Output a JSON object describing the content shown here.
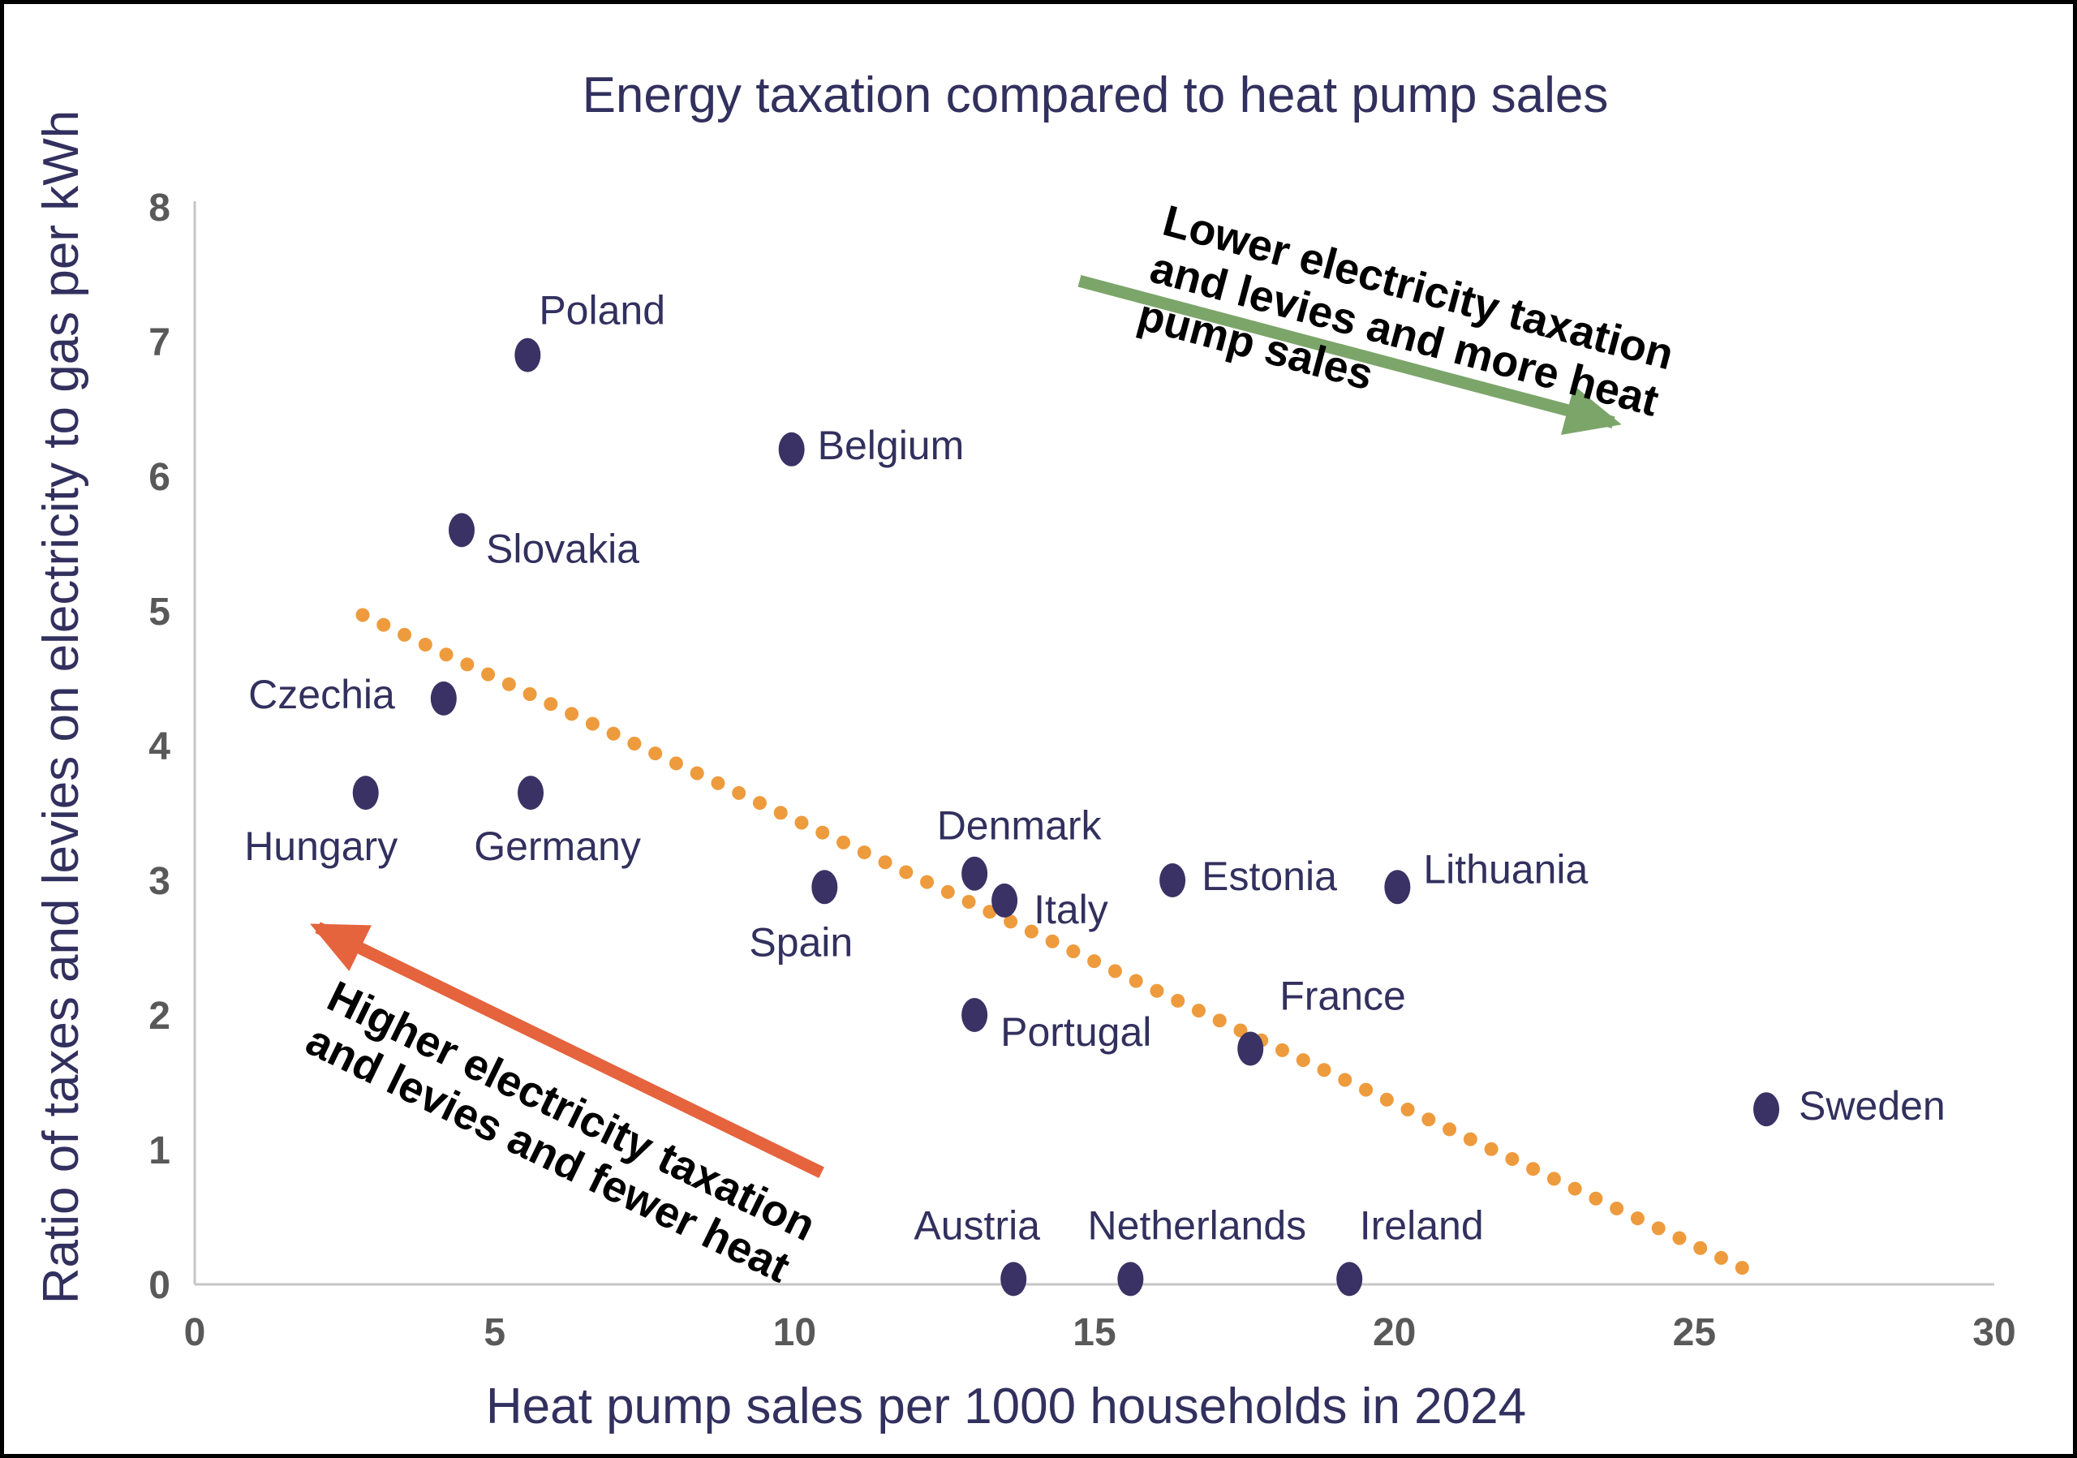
{
  "title": "Energy taxation compared to heat pump sales",
  "colors": {
    "background": "#FFFFFF",
    "border": "#000000",
    "navy": "#32305E",
    "dot": "#3A3264",
    "orange": "#EE9B3D",
    "green": "#7CA56A",
    "red": "#E5633D",
    "tick": "#595959",
    "axis_line": "#C6C6C6",
    "annotation": "#000000"
  },
  "chart_data": {
    "type": "scatter",
    "title": "Energy taxation compared to heat pump sales",
    "xlabel": "Heat pump sales per 1000 households in 2024",
    "ylabel": "Ratio of taxes and levies on electricity to gas per kWh",
    "xlim": [
      0,
      30
    ],
    "ylim": [
      0,
      8
    ],
    "x_ticks": [
      0,
      5,
      10,
      15,
      20,
      25,
      30
    ],
    "y_ticks": [
      0,
      1,
      2,
      3,
      4,
      5,
      6,
      7,
      8
    ],
    "grid": "off",
    "legend": "none",
    "points": [
      {
        "country": "Poland",
        "x": 5.55,
        "y": 6.9,
        "anchor": "start",
        "offset": [
          14,
          -38
        ]
      },
      {
        "country": "Belgium",
        "x": 9.95,
        "y": 6.2,
        "anchor": "start",
        "offset": [
          32,
          12
        ]
      },
      {
        "country": "Slovakia",
        "x": 4.45,
        "y": 5.6,
        "anchor": "start",
        "offset": [
          30,
          40
        ]
      },
      {
        "country": "Czechia",
        "x": 4.15,
        "y": 4.35,
        "anchor": "end",
        "offset": [
          -60,
          12
        ]
      },
      {
        "country": "Hungary",
        "x": 2.85,
        "y": 3.65,
        "anchor": "middle",
        "offset": [
          -55,
          83
        ]
      },
      {
        "country": "Germany",
        "x": 5.6,
        "y": 3.65,
        "anchor": "middle",
        "offset": [
          33,
          83
        ]
      },
      {
        "country": "Spain",
        "x": 10.5,
        "y": 2.95,
        "anchor": "middle",
        "offset": [
          -29,
          85
        ]
      },
      {
        "country": "Denmark",
        "x": 13.0,
        "y": 3.05,
        "anchor": "middle",
        "offset": [
          55,
          -42
        ]
      },
      {
        "country": "Italy",
        "x": 13.5,
        "y": 2.85,
        "anchor": "start",
        "offset": [
          36,
          28
        ]
      },
      {
        "country": "Estonia",
        "x": 16.3,
        "y": 3.0,
        "anchor": "start",
        "offset": [
          36,
          12
        ]
      },
      {
        "country": "Lithuania",
        "x": 20.05,
        "y": 2.95,
        "anchor": "start",
        "offset": [
          32,
          -5
        ]
      },
      {
        "country": "Portugal",
        "x": 13.0,
        "y": 2.0,
        "anchor": "start",
        "offset": [
          32,
          38
        ]
      },
      {
        "country": "France",
        "x": 17.6,
        "y": 1.75,
        "anchor": "start",
        "offset": [
          36,
          -48
        ]
      },
      {
        "country": "Sweden",
        "x": 26.2,
        "y": 1.3,
        "anchor": "start",
        "offset": [
          40,
          13
        ]
      },
      {
        "country": "Austria",
        "x": 13.65,
        "y": 0.04,
        "anchor": "middle",
        "offset": [
          -45,
          -49
        ]
      },
      {
        "country": "Netherlands",
        "x": 15.6,
        "y": 0.04,
        "anchor": "middle",
        "offset": [
          82,
          -49
        ]
      },
      {
        "country": "Ireland",
        "x": 19.25,
        "y": 0.04,
        "anchor": "middle",
        "offset": [
          89,
          -49
        ]
      }
    ],
    "trendline": {
      "style": "dotted",
      "color_key": "orange",
      "from": [
        2.8,
        4.97
      ],
      "to": [
        26.0,
        0.08
      ]
    },
    "annotations": [
      {
        "id": "lower-right",
        "lines": [
          "Lower electricity taxation",
          "and levies and more heat",
          "pump sales"
        ],
        "arrow_from": [
          14.75,
          7.45
        ],
        "arrow_to": [
          23.65,
          6.4
        ],
        "text_anchor": [
          16.1,
          7.8
        ],
        "rotation_deg": 15,
        "color_key": "green"
      },
      {
        "id": "higher-left",
        "lines": [
          "Higher electricity taxation",
          "and levies and fewer heat"
        ],
        "arrow_from": [
          10.45,
          0.83
        ],
        "arrow_to": [
          2.05,
          2.65
        ],
        "text_anchor": [
          2.16,
          2.06
        ],
        "rotation_deg": 26,
        "color_key": "red"
      }
    ]
  }
}
